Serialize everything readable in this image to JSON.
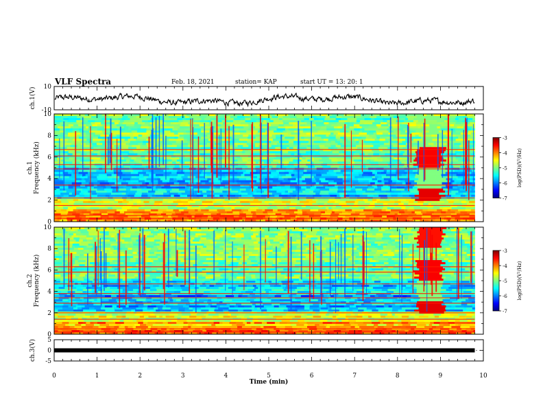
{
  "header": {
    "title": "VLF Spectra",
    "date": "Feb. 18, 2021",
    "station": "station= KAP",
    "start": "start  UT =   13: 20: 1"
  },
  "chart_data": [
    {
      "type": "line",
      "name": "ch1-waveform",
      "ylabel": "ch.1(V)",
      "ylim": [
        -10,
        10
      ],
      "yticks": [
        "10",
        "-10"
      ],
      "xlim": [
        0,
        10
      ],
      "data_end_min": 9.8,
      "color": "#000000"
    },
    {
      "type": "heatmap",
      "name": "ch1-spectrogram",
      "ylabel_top": "ch.1",
      "ylabel": "Frequency (kHz)",
      "ylim": [
        0,
        10
      ],
      "yticks": [
        "0",
        "2",
        "4",
        "6",
        "8",
        "10"
      ],
      "xlim": [
        0,
        10
      ],
      "data_end_min": 9.8,
      "event_window_min": [
        8.45,
        9.05
      ],
      "colorbar": {
        "label": "log(PSD)(V²/Hz)",
        "range": [
          -7,
          -3
        ],
        "ticks": [
          "-3",
          "-4",
          "-5",
          "-6",
          "-7"
        ]
      }
    },
    {
      "type": "heatmap",
      "name": "ch2-spectrogram",
      "ylabel_top": "ch.2",
      "ylabel": "Frequency (kHz)",
      "ylim": [
        0,
        10
      ],
      "yticks": [
        "0",
        "2",
        "4",
        "6",
        "8",
        "10"
      ],
      "xlim": [
        0,
        10
      ],
      "data_end_min": 9.8,
      "event_window_min": [
        8.45,
        9.05
      ],
      "colorbar": {
        "label": "log(PSD)(V²/Hz)",
        "range": [
          -7,
          -3
        ],
        "ticks": [
          "-3",
          "-4",
          "-5",
          "-6",
          "-7"
        ]
      }
    },
    {
      "type": "line",
      "name": "ch3-waveform",
      "ylabel": "ch.3(V)",
      "ylim": [
        -5,
        5
      ],
      "yticks": [
        "5",
        "0",
        "-5"
      ],
      "xlim": [
        0,
        10
      ],
      "data_end_min": 9.8,
      "color": "#000000"
    }
  ],
  "xaxis": {
    "label": "Time (min)",
    "ticks": [
      "0",
      "1",
      "2",
      "3",
      "4",
      "5",
      "6",
      "7",
      "8",
      "9",
      "10"
    ]
  }
}
